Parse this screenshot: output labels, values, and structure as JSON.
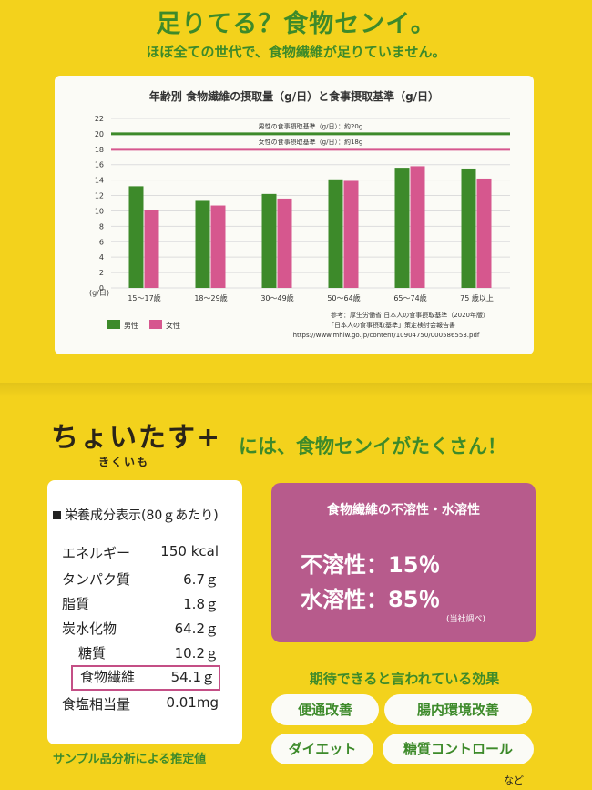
{
  "header": {
    "title": "足りてる？食物センイ。",
    "subtitle": "ほぼ全ての世代で、食物繊維が足りていません。"
  },
  "chart_data": {
    "type": "bar",
    "title": "年齢別 食物繊維の摂取量（g/日）と食事摂取基準（g/日）",
    "ylabel": "(g/日)",
    "ylim": [
      0,
      22
    ],
    "yticks": [
      "0",
      "2",
      "4",
      "6",
      "8",
      "10",
      "12",
      "14",
      "16",
      "18",
      "20",
      "22"
    ],
    "categories": [
      "15～17歳",
      "18～29歳",
      "30～49歳",
      "50～64歳",
      "65～74歳",
      "75 歳以上"
    ],
    "series": [
      {
        "name": "男性",
        "color": "#3d8a2a",
        "values": [
          13.2,
          11.3,
          12.2,
          14.1,
          15.6,
          15.5
        ]
      },
      {
        "name": "女性",
        "color": "#d6578e",
        "values": [
          10.1,
          10.7,
          11.6,
          13.9,
          15.8,
          14.2
        ]
      }
    ],
    "reference_lines": [
      {
        "label": "男性の食事摂取基準（g/日）：約20g",
        "value": 20,
        "color": "#3d8a2a"
      },
      {
        "label": "女性の食事摂取基準（g/日）：約18g",
        "value": 18,
        "color": "#d6578e"
      }
    ],
    "legend": [
      "男性",
      "女性"
    ],
    "legend_position": "bottom-left",
    "grid": true,
    "source_lines": [
      "参考：厚生労働省 日本人の食事摂取基準（2020年版）",
      "「日本人の食事摂取基準」策定検討会報告書",
      "https://www.mhlw.go.jp/content/10904750/000586553.pdf"
    ]
  },
  "product": {
    "name": "ちょいたす+",
    "subname": "きくいも",
    "tagline": "には、食物センイがたくさん！"
  },
  "nutrition": {
    "title": "栄養成分表示(80ｇあたり)",
    "rows": [
      {
        "label": "エネルギー",
        "value": "150 kcal"
      },
      {
        "label": "タンパク質",
        "value": "6.7ｇ"
      },
      {
        "label": "脂質",
        "value": "1.8ｇ"
      },
      {
        "label": "炭水化物",
        "value": "64.2ｇ"
      },
      {
        "label": "糖質",
        "value": "10.2ｇ"
      },
      {
        "label": "食物繊維",
        "value": "54.1ｇ"
      },
      {
        "label": "食塩相当量",
        "value": "0.01mg"
      }
    ],
    "note": "サンプル品分析による推定値"
  },
  "fiber": {
    "title": "食物繊維の不溶性・水溶性",
    "insoluble": "不溶性：15％",
    "soluble": "水溶性：85％",
    "source": "(当社調べ)"
  },
  "effects": {
    "title": "期待できると言われている効果",
    "items": [
      "便通改善",
      "腸内環境改善",
      "ダイエット",
      "糖質コントロール"
    ],
    "etc": "など"
  }
}
